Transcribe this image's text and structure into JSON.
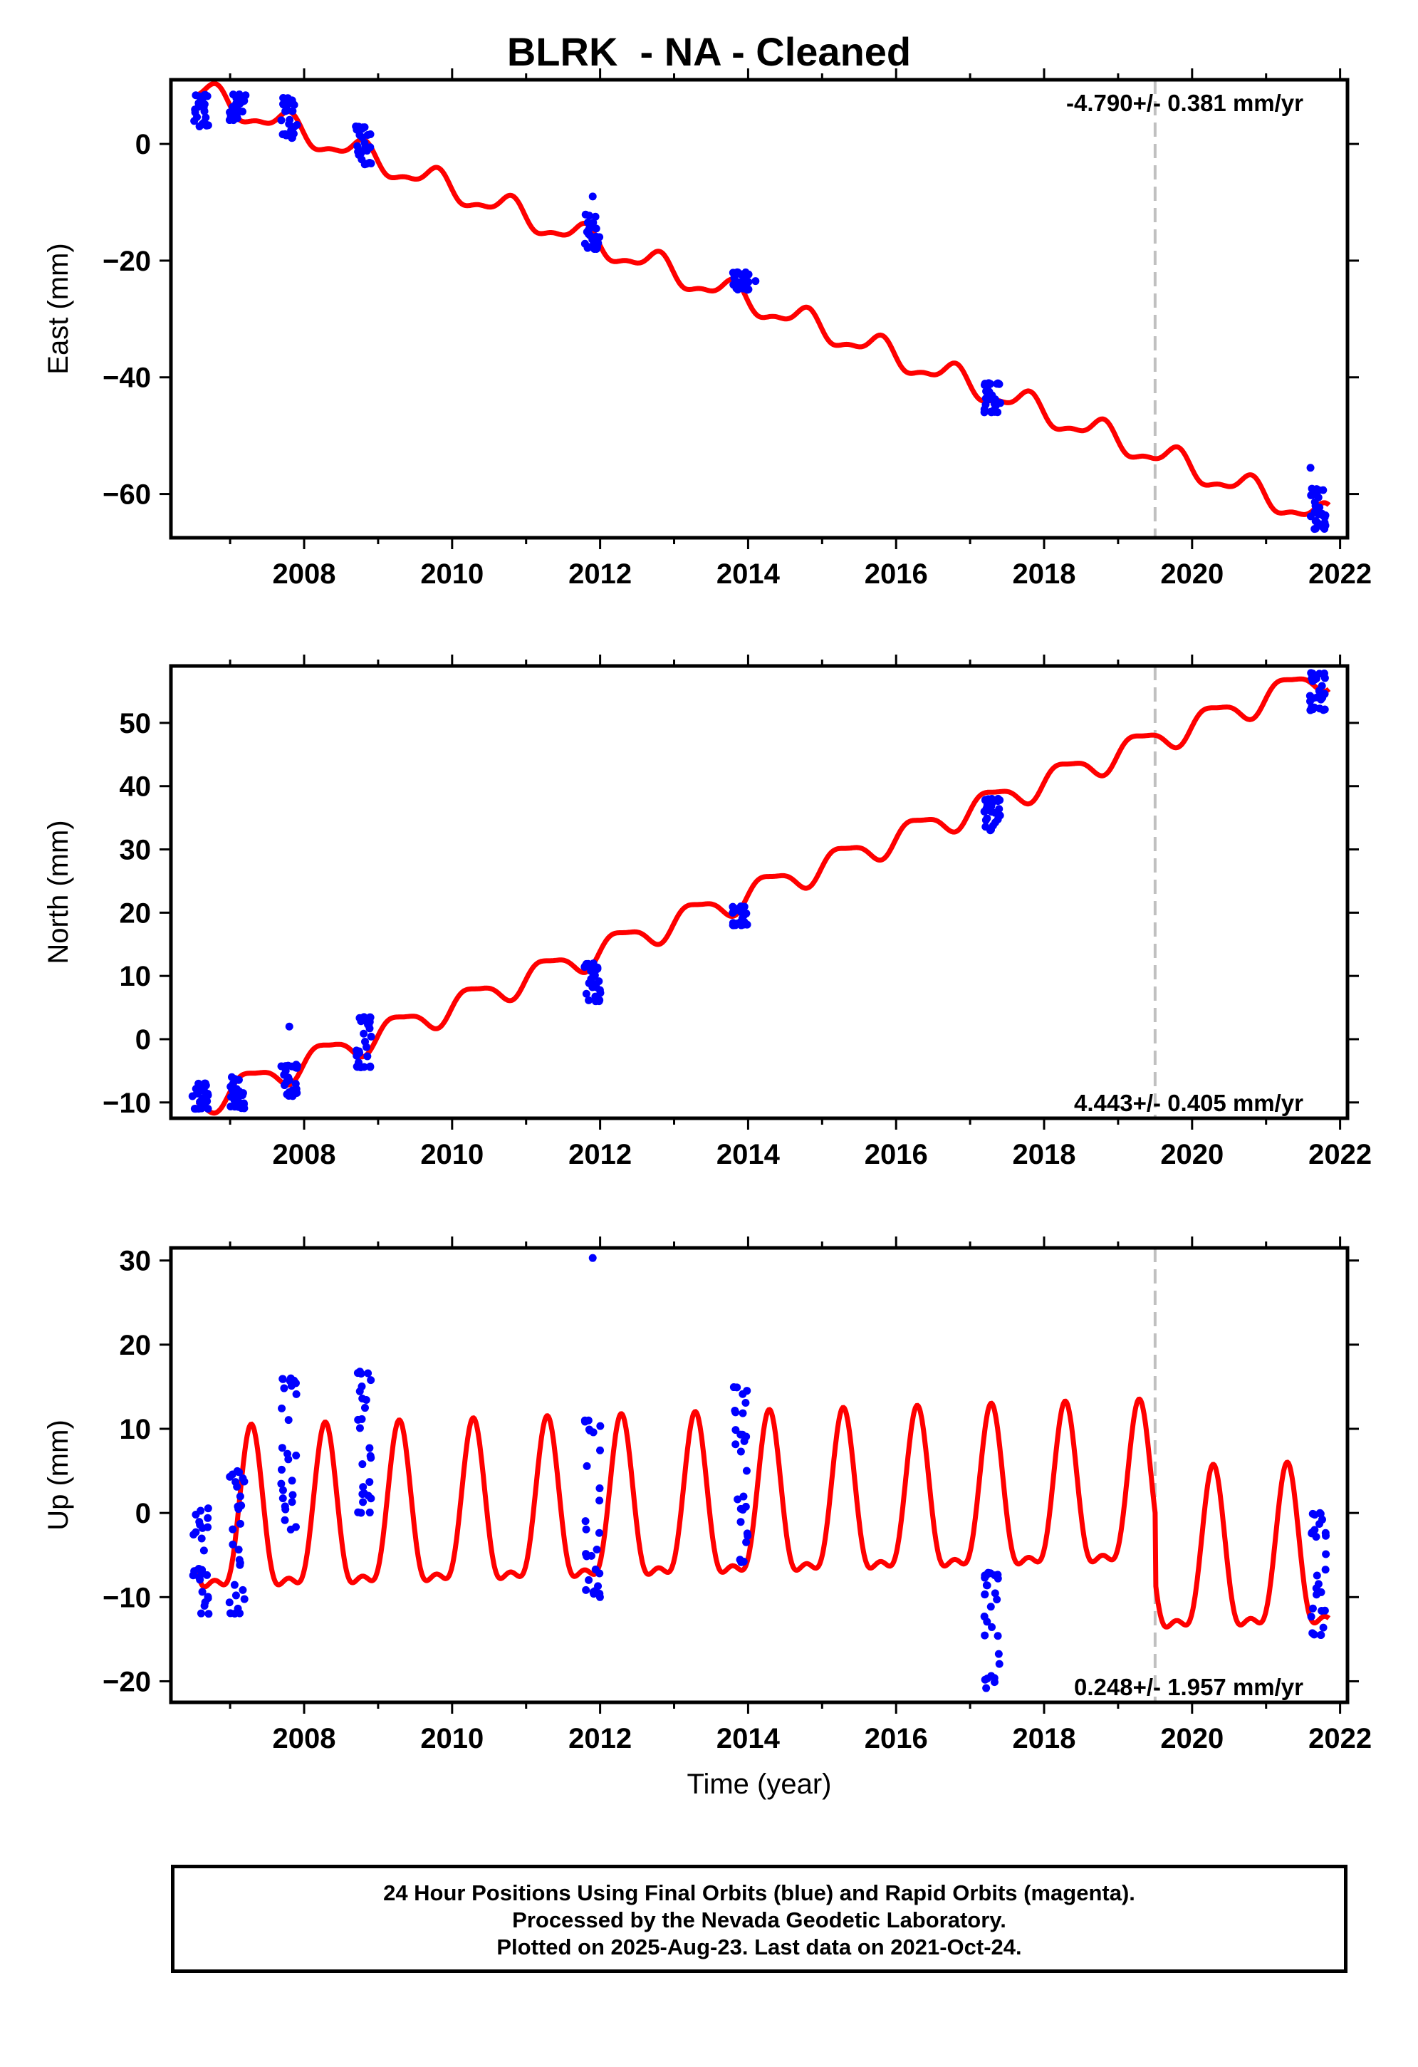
{
  "title": "BLRK  - NA - Cleaned",
  "footer": {
    "line1": "24 Hour Positions Using Final Orbits (blue) and Rapid Orbits (magenta).",
    "line2": "Processed by the Nevada Geodetic Laboratory.",
    "line3": "Plotted on 2025-Aug-23. Last data on 2021-Oct-24."
  },
  "colors": {
    "data": "#0000ff",
    "model": "#ff0000",
    "event_line": "#c0c0c0",
    "frame": "#000000"
  },
  "chart_data": [
    {
      "type": "scatter",
      "name": "east",
      "ylabel": "East (mm)",
      "xlabel": "",
      "xlim": [
        2006.2,
        2022.1
      ],
      "ylim": [
        -67.5,
        11
      ],
      "xticks": [
        2008,
        2010,
        2012,
        2014,
        2016,
        2018,
        2020,
        2022
      ],
      "yticks": [
        -60,
        -40,
        -20,
        0
      ],
      "rate_label": "-4.790+/- 0.381 mm/yr",
      "rate_label_position": "top-right",
      "event_line_x": 2019.5,
      "model": {
        "intercept": 8.8,
        "rate": -4.79,
        "t0": 2006.55,
        "annual_sin": -2.0,
        "annual_cos": 0.3,
        "semi_sin": -0.7,
        "semi_cos": -0.4
      },
      "clusters": [
        {
          "x": 2006.6,
          "ymin": 3,
          "ymax": 8.5
        },
        {
          "x": 2007.1,
          "ymin": 4,
          "ymax": 8.5
        },
        {
          "x": 2007.8,
          "ymin": 1,
          "ymax": 8
        },
        {
          "x": 2008.8,
          "ymin": -3.5,
          "ymax": 3
        },
        {
          "x": 2011.9,
          "ymin": -18,
          "ymax": -12
        },
        {
          "x": 2013.9,
          "ymin": -25,
          "ymax": -22
        },
        {
          "x": 2017.3,
          "ymin": -46,
          "ymax": -41
        },
        {
          "x": 2021.7,
          "ymin": -66,
          "ymax": -59
        }
      ],
      "outliers": [
        {
          "x": 2011.9,
          "y": -9
        },
        {
          "x": 2014.1,
          "y": -23.5
        },
        {
          "x": 2021.6,
          "y": -55.5
        }
      ]
    },
    {
      "type": "scatter",
      "name": "north",
      "ylabel": "North (mm)",
      "xlabel": "",
      "xlim": [
        2006.2,
        2022.1
      ],
      "ylim": [
        -12.5,
        59
      ],
      "xticks": [
        2008,
        2010,
        2012,
        2014,
        2016,
        2018,
        2020,
        2022
      ],
      "yticks": [
        -10,
        0,
        10,
        20,
        30,
        40,
        50
      ],
      "rate_label": "4.443+/- 0.405 mm/yr",
      "rate_label_position": "bottom-right",
      "event_line_x": 2019.5,
      "model": {
        "intercept": -10.2,
        "rate": 4.443,
        "t0": 2006.55,
        "annual_sin": 2.0,
        "annual_cos": -0.4,
        "semi_sin": 0.5,
        "semi_cos": 0.3
      },
      "clusters": [
        {
          "x": 2006.6,
          "ymin": -11,
          "ymax": -7
        },
        {
          "x": 2007.1,
          "ymin": -11,
          "ymax": -6
        },
        {
          "x": 2007.8,
          "ymin": -9,
          "ymax": -4
        },
        {
          "x": 2008.8,
          "ymin": -4.5,
          "ymax": 3.5
        },
        {
          "x": 2011.9,
          "ymin": 6,
          "ymax": 12
        },
        {
          "x": 2013.9,
          "ymin": 18,
          "ymax": 21
        },
        {
          "x": 2017.3,
          "ymin": 33,
          "ymax": 38
        },
        {
          "x": 2021.7,
          "ymin": 52,
          "ymax": 58
        }
      ],
      "outliers": [
        {
          "x": 2007.8,
          "y": 2
        }
      ]
    },
    {
      "type": "scatter",
      "name": "up",
      "ylabel": "Up (mm)",
      "xlabel": "Time (year)",
      "xlim": [
        2006.2,
        2022.1
      ],
      "ylim": [
        -22.5,
        31.5
      ],
      "xticks": [
        2008,
        2010,
        2012,
        2014,
        2016,
        2018,
        2020,
        2022
      ],
      "yticks": [
        -20,
        -10,
        0,
        10,
        20,
        30
      ],
      "rate_label": "0.248+/- 1.957 mm/yr",
      "rate_label_position": "bottom-right",
      "event_line_x": 2019.5,
      "model": {
        "intercept": -2.2,
        "rate": 0.248,
        "t0": 2006.55,
        "annual_sin": 9.0,
        "annual_cos": -2.0,
        "semi_sin": -1.5,
        "semi_cos": -3.0,
        "post_event_offset": -8.0
      },
      "clusters": [
        {
          "x": 2006.6,
          "ymin": -12,
          "ymax": 1
        },
        {
          "x": 2007.1,
          "ymin": -12,
          "ymax": 5
        },
        {
          "x": 2007.8,
          "ymin": -2,
          "ymax": 16
        },
        {
          "x": 2008.8,
          "ymin": 0,
          "ymax": 17
        },
        {
          "x": 2011.9,
          "ymin": -10,
          "ymax": 11
        },
        {
          "x": 2013.9,
          "ymin": -6,
          "ymax": 15
        },
        {
          "x": 2017.3,
          "ymin": -21,
          "ymax": -7
        },
        {
          "x": 2021.7,
          "ymin": -14.5,
          "ymax": 0
        }
      ],
      "outliers": [
        {
          "x": 2011.9,
          "y": 30.3
        }
      ]
    }
  ]
}
